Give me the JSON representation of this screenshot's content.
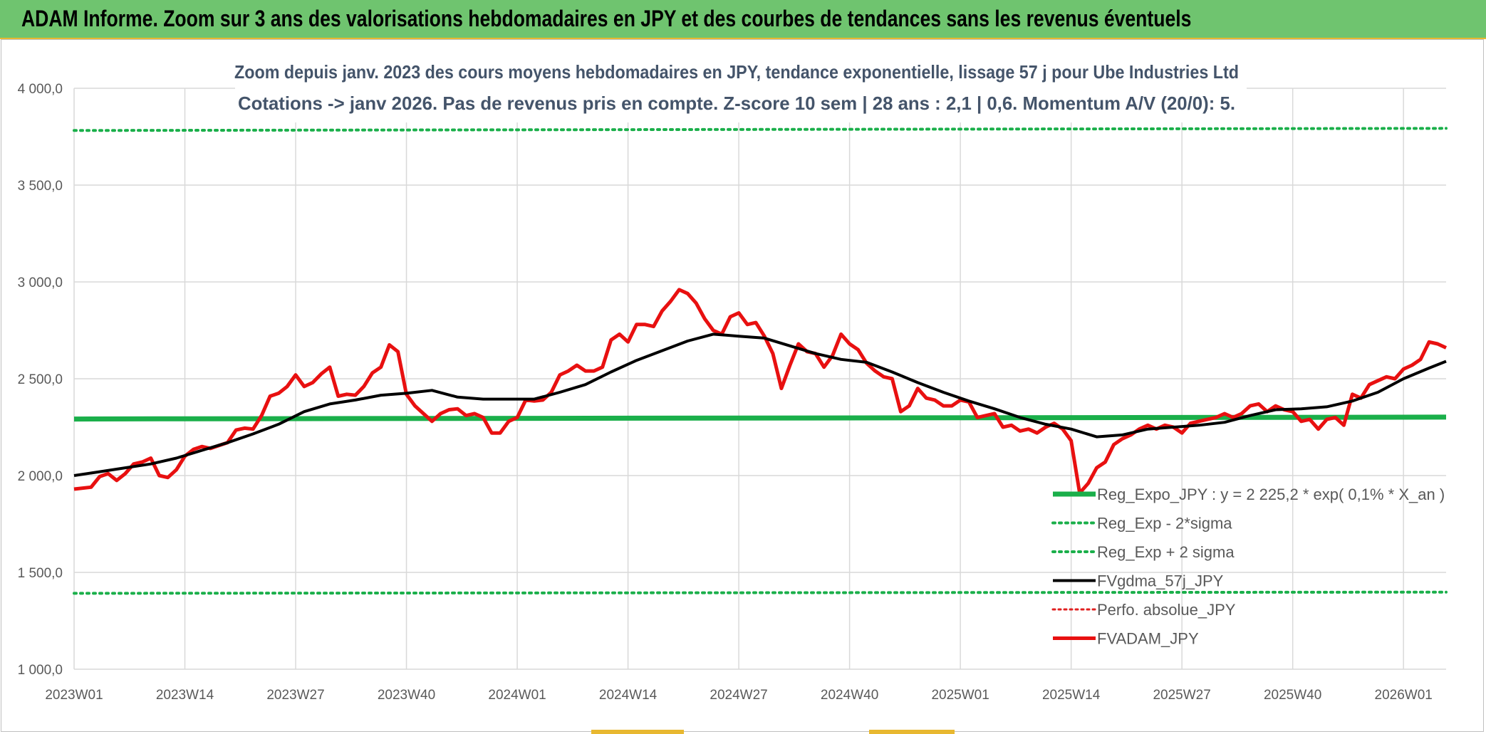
{
  "banner": {
    "title": "ADAM Informe. Zoom sur 3 ans des valorisations hebdomadaires en JPY et des courbes de tendances sans les revenus éventuels"
  },
  "chart_data": {
    "type": "line",
    "title_line1": "Zoom depuis janv. 2023 des cours moyens hebdomadaires en JPY, tendance exponentielle, lissage 57 j pour Ube Industries Ltd",
    "title_line2": "Cotations -> janv 2026. Pas de revenus pris en compte. Z-score 10 sem | 28 ans : 2,1 | 0,6. Momentum A/V (20/0): 5.",
    "ylim": [
      1000,
      4000
    ],
    "y_ticks": [
      {
        "value": 1000,
        "label": "1 000,0"
      },
      {
        "value": 1500,
        "label": "1 500,0"
      },
      {
        "value": 2000,
        "label": "2 000,0"
      },
      {
        "value": 2500,
        "label": "2 500,0"
      },
      {
        "value": 3000,
        "label": "3 000,0"
      },
      {
        "value": 3500,
        "label": "3 500,0"
      },
      {
        "value": 4000,
        "label": "4 000,0"
      }
    ],
    "xlim": [
      0,
      161
    ],
    "x_ticks": [
      {
        "index": 0,
        "label": "2023W01"
      },
      {
        "index": 13,
        "label": "2023W14"
      },
      {
        "index": 26,
        "label": "2023W27"
      },
      {
        "index": 39,
        "label": "2023W40"
      },
      {
        "index": 52,
        "label": "2024W01"
      },
      {
        "index": 65,
        "label": "2024W14"
      },
      {
        "index": 78,
        "label": "2024W27"
      },
      {
        "index": 91,
        "label": "2024W40"
      },
      {
        "index": 104,
        "label": "2025W01"
      },
      {
        "index": 117,
        "label": "2025W14"
      },
      {
        "index": 130,
        "label": "2025W27"
      },
      {
        "index": 143,
        "label": "2025W40"
      },
      {
        "index": 156,
        "label": "2026W01"
      }
    ],
    "legend_position": "bottom-right",
    "colors": {
      "regression": "#1aaf4a",
      "sigma": "#1aaf4a",
      "perfo": "#e02020",
      "fvgdma": "#000000",
      "fvadam": "#e81010",
      "grid": "#d9d9d9",
      "title_text": "#44546a",
      "axis_text": "#595959"
    },
    "series": [
      {
        "key": "reg_expo",
        "name": "Reg_Expo_JPY : y = 2 225,2 * exp( 0,1% *  X_an )",
        "style": "solid-thick",
        "x": [
          0,
          10,
          161
        ],
        "values": [
          2292,
          2293,
          2302
        ]
      },
      {
        "key": "reg_minus",
        "name": "Reg_Exp - 2*sigma",
        "style": "dotted",
        "x": [
          0,
          161
        ],
        "values": [
          1392,
          1398
        ]
      },
      {
        "key": "reg_plus",
        "name": "Reg_Exp + 2 sigma",
        "style": "dotted",
        "x": [
          0,
          161
        ],
        "values": [
          3782,
          3793
        ]
      },
      {
        "key": "fvgdma",
        "name": "FVgdma_57j_JPY",
        "style": "solid",
        "x": [
          0,
          3,
          6,
          9,
          12,
          15,
          18,
          21,
          24,
          27,
          30,
          33,
          36,
          39,
          42,
          45,
          48,
          51,
          54,
          57,
          60,
          63,
          66,
          69,
          72,
          75,
          78,
          81,
          84,
          87,
          90,
          93,
          96,
          99,
          102,
          105,
          108,
          111,
          114,
          117,
          120,
          123,
          126,
          129,
          132,
          135,
          138,
          141,
          144,
          147,
          150,
          153,
          156,
          159,
          161
        ],
        "values": [
          2000,
          2020,
          2040,
          2060,
          2090,
          2130,
          2170,
          2215,
          2265,
          2330,
          2370,
          2390,
          2415,
          2425,
          2440,
          2405,
          2395,
          2395,
          2395,
          2430,
          2470,
          2535,
          2595,
          2645,
          2695,
          2730,
          2720,
          2710,
          2670,
          2630,
          2600,
          2585,
          2535,
          2480,
          2430,
          2385,
          2345,
          2300,
          2265,
          2240,
          2200,
          2210,
          2240,
          2250,
          2260,
          2275,
          2310,
          2340,
          2345,
          2355,
          2385,
          2430,
          2500,
          2555,
          2590
        ]
      },
      {
        "key": "perfo",
        "name": "Perfo. absolue_JPY",
        "style": "dotted",
        "x": [],
        "values": []
      },
      {
        "key": "fvadam",
        "name": "FVADAM_JPY",
        "style": "solid-thick",
        "x": [
          0,
          2,
          3,
          4,
          5,
          6,
          7,
          8,
          9,
          10,
          11,
          12,
          13,
          14,
          15,
          16,
          17,
          18,
          19,
          20,
          21,
          22,
          23,
          24,
          25,
          26,
          27,
          28,
          29,
          30,
          31,
          32,
          33,
          34,
          35,
          36,
          37,
          38,
          39,
          40,
          41,
          42,
          43,
          44,
          45,
          46,
          47,
          48,
          49,
          50,
          51,
          52,
          53,
          54,
          55,
          56,
          57,
          58,
          59,
          60,
          61,
          62,
          63,
          64,
          65,
          66,
          67,
          68,
          69,
          70,
          71,
          72,
          73,
          74,
          75,
          76,
          77,
          78,
          79,
          80,
          81,
          82,
          83,
          84,
          85,
          86,
          87,
          88,
          89,
          90,
          91,
          92,
          93,
          94,
          95,
          96,
          97,
          98,
          99,
          100,
          101,
          102,
          103,
          104,
          105,
          106,
          107,
          108,
          109,
          110,
          111,
          112,
          113,
          114,
          115,
          116,
          117,
          118,
          119,
          120,
          121,
          122,
          123,
          124,
          125,
          126,
          127,
          128,
          129,
          130,
          131,
          132,
          133,
          134,
          135,
          136,
          137,
          138,
          139,
          140,
          141,
          142,
          143,
          144,
          145,
          146,
          147,
          148,
          149,
          150,
          151,
          152,
          153,
          154,
          155,
          156,
          157,
          158,
          159,
          160,
          161
        ],
        "values": [
          1930,
          1940,
          1995,
          2010,
          1975,
          2010,
          2060,
          2070,
          2090,
          2000,
          1990,
          2030,
          2100,
          2135,
          2150,
          2140,
          2155,
          2170,
          2235,
          2245,
          2240,
          2310,
          2410,
          2425,
          2460,
          2520,
          2460,
          2480,
          2525,
          2560,
          2410,
          2420,
          2415,
          2460,
          2530,
          2560,
          2675,
          2640,
          2420,
          2360,
          2320,
          2280,
          2320,
          2340,
          2345,
          2310,
          2320,
          2300,
          2220,
          2220,
          2280,
          2300,
          2390,
          2385,
          2390,
          2430,
          2520,
          2540,
          2570,
          2540,
          2540,
          2560,
          2700,
          2730,
          2690,
          2780,
          2780,
          2770,
          2850,
          2900,
          2960,
          2940,
          2890,
          2810,
          2750,
          2730,
          2820,
          2840,
          2780,
          2790,
          2720,
          2630,
          2450,
          2570,
          2680,
          2640,
          2630,
          2560,
          2620,
          2730,
          2680,
          2650,
          2580,
          2540,
          2510,
          2500,
          2330,
          2360,
          2450,
          2400,
          2390,
          2360,
          2360,
          2390,
          2380,
          2300,
          2310,
          2320,
          2250,
          2260,
          2230,
          2240,
          2220,
          2250,
          2270,
          2240,
          2180,
          1910,
          1960,
          2040,
          2070,
          2160,
          2190,
          2210,
          2240,
          2260,
          2240,
          2260,
          2250,
          2220,
          2270,
          2280,
          2290,
          2300,
          2320,
          2300,
          2320,
          2360,
          2370,
          2330,
          2360,
          2340,
          2330,
          2280,
          2290,
          2240,
          2290,
          2300,
          2260,
          2420,
          2400,
          2470,
          2490,
          2510,
          2500,
          2550,
          2570,
          2600,
          2690,
          2680,
          2660
        ]
      }
    ]
  }
}
